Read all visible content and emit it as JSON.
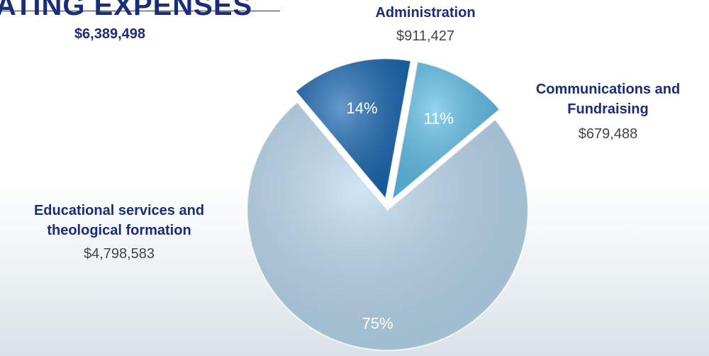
{
  "chart_data": {
    "type": "pie",
    "title": "ATING EXPENSES",
    "total": "$6,389,498",
    "categories": [
      "Administration",
      "Communications and Fundraising",
      "Educational services and theological formation"
    ],
    "values": [
      14,
      11,
      75
    ],
    "value_labels": [
      "14%",
      "11%",
      "75%"
    ],
    "amounts": [
      "$911,427",
      "$679,488",
      "$4,798,583"
    ],
    "colors": [
      "#1565b0",
      "#5bbde8",
      "#b9d9f0"
    ]
  }
}
